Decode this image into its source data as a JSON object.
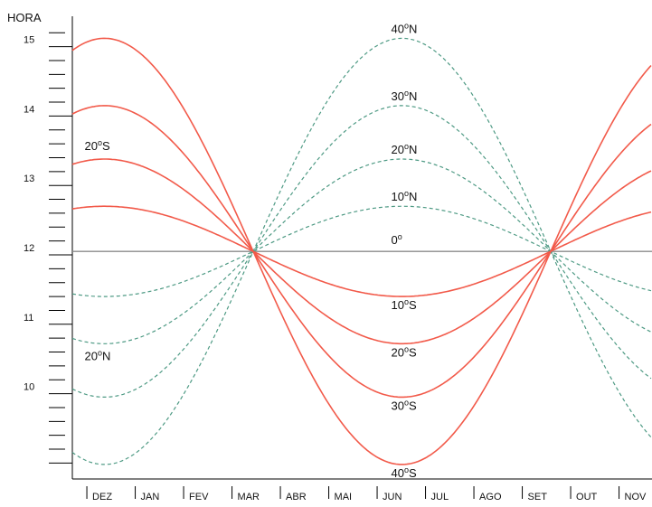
{
  "chart_data": {
    "type": "line",
    "title": "",
    "ylabel": "HORA",
    "xlabel": "",
    "ylim": [
      8.95,
      15.3
    ],
    "yticks": [
      "15",
      "14",
      "13",
      "12",
      "11",
      "10"
    ],
    "months": [
      "DEZ",
      "JAN",
      "FEV",
      "MAR",
      "ABR",
      "MAI",
      "JUN",
      "JUL",
      "AGO",
      "SET",
      "OUT",
      "NOV"
    ],
    "colors": {
      "south": "#f25a4a",
      "north": "#4e9a84",
      "equator": "#8c8c8c"
    },
    "series": [
      {
        "name": "0",
        "unit": "o",
        "hemisphere": "equator",
        "amplitude": 0
      },
      {
        "name": "10",
        "unit": "oN",
        "hemisphere": "north",
        "amplitude": 0.65
      },
      {
        "name": "20",
        "unit": "oN",
        "hemisphere": "north",
        "amplitude": 1.33
      },
      {
        "name": "30",
        "unit": "oN",
        "hemisphere": "north",
        "amplitude": 2.1
      },
      {
        "name": "40",
        "unit": "oN",
        "hemisphere": "north",
        "amplitude": 3.07
      },
      {
        "name": "10",
        "unit": "oS",
        "hemisphere": "south",
        "amplitude": 0.65
      },
      {
        "name": "20",
        "unit": "oS",
        "hemisphere": "south",
        "amplitude": 1.33
      },
      {
        "name": "30",
        "unit": "oS",
        "hemisphere": "south",
        "amplitude": 2.1
      },
      {
        "name": "40",
        "unit": "oS",
        "hemisphere": "south",
        "amplitude": 3.07
      }
    ],
    "annotations": [
      {
        "name": "20",
        "unit": "oS",
        "month": "DEZ"
      },
      {
        "name": "20",
        "unit": "oN",
        "month": "DEZ"
      }
    ],
    "equinox_value": 12.05,
    "grid": false
  }
}
